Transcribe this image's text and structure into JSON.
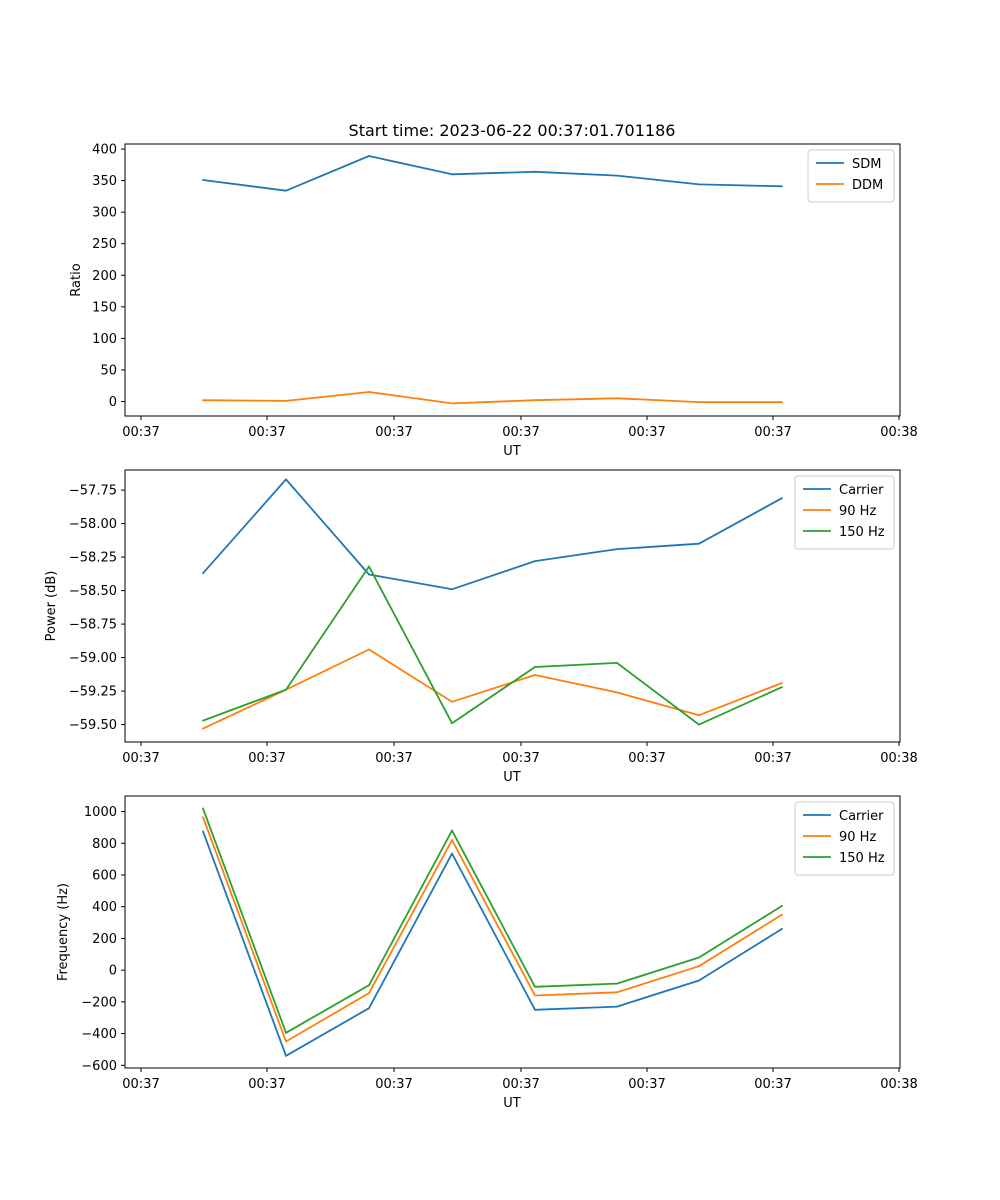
{
  "title": "Start time: 2023-06-22 00:37:01.701186",
  "colors": {
    "c0": "#1f77b4",
    "c1": "#ff7f0e",
    "c2": "#2ca02c",
    "axis": "#000000"
  },
  "chart_data": [
    {
      "type": "line",
      "xlabel": "UT",
      "ylabel": "Ratio",
      "x_tick_labels": [
        "00:37",
        "00:37",
        "00:37",
        "00:37",
        "00:37",
        "00:37",
        "00:38"
      ],
      "y_ticks": [
        0,
        50,
        100,
        150,
        200,
        250,
        300,
        350,
        400
      ],
      "ylim": [
        -23,
        408
      ],
      "legend_position": "top-right",
      "x": [
        1,
        2,
        3,
        4,
        5,
        6,
        7,
        8
      ],
      "series": [
        {
          "name": "SDM",
          "color": "#1f77b4",
          "values": [
            351,
            334,
            389,
            360,
            364,
            358,
            344,
            341
          ]
        },
        {
          "name": "DDM",
          "color": "#ff7f0e",
          "values": [
            2,
            1,
            15,
            -3,
            2,
            5,
            -1,
            -1
          ]
        }
      ]
    },
    {
      "type": "line",
      "xlabel": "UT",
      "ylabel": "Power (dB)",
      "x_tick_labels": [
        "00:37",
        "00:37",
        "00:37",
        "00:37",
        "00:37",
        "00:37",
        "00:38"
      ],
      "y_ticks": [
        -59.5,
        -59.25,
        -59.0,
        -58.75,
        -58.5,
        -58.25,
        -58.0,
        -57.75
      ],
      "y_tick_labels": [
        "−59.50",
        "−59.25",
        "−59.00",
        "−58.75",
        "−58.50",
        "−58.25",
        "−58.00",
        "−57.75"
      ],
      "ylim": [
        -59.63,
        -57.6
      ],
      "legend_position": "top-right",
      "x": [
        1,
        2,
        3,
        4,
        5,
        6,
        7,
        8
      ],
      "series": [
        {
          "name": "Carrier",
          "color": "#1f77b4",
          "values": [
            -58.37,
            -57.67,
            -58.38,
            -58.49,
            -58.28,
            -58.19,
            -58.15,
            -57.81
          ]
        },
        {
          "name": "90 Hz",
          "color": "#ff7f0e",
          "values": [
            -59.53,
            -59.24,
            -58.94,
            -59.33,
            -59.13,
            -59.26,
            -59.43,
            -59.19
          ]
        },
        {
          "name": "150 Hz",
          "color": "#2ca02c",
          "values": [
            -59.47,
            -59.24,
            -58.32,
            -59.49,
            -59.07,
            -59.04,
            -59.5,
            -59.22
          ]
        }
      ]
    },
    {
      "type": "line",
      "xlabel": "UT",
      "ylabel": "Frequency (Hz)",
      "x_tick_labels": [
        "00:37",
        "00:37",
        "00:37",
        "00:37",
        "00:37",
        "00:37",
        "00:38"
      ],
      "y_ticks": [
        -600,
        -400,
        -200,
        0,
        200,
        400,
        600,
        800,
        1000
      ],
      "y_tick_labels": [
        "−600",
        "−400",
        "−200",
        "0",
        "200",
        "400",
        "600",
        "800",
        "1000"
      ],
      "ylim": [
        -617,
        1098
      ],
      "legend_position": "top-right",
      "x": [
        1,
        2,
        3,
        4,
        5,
        6,
        7,
        8
      ],
      "series": [
        {
          "name": "Carrier",
          "color": "#1f77b4",
          "values": [
            875,
            -540,
            -240,
            735,
            -250,
            -230,
            -65,
            260
          ]
        },
        {
          "name": "90 Hz",
          "color": "#ff7f0e",
          "values": [
            965,
            -450,
            -145,
            820,
            -160,
            -140,
            25,
            350
          ]
        },
        {
          "name": "150 Hz",
          "color": "#2ca02c",
          "values": [
            1020,
            -395,
            -95,
            880,
            -105,
            -85,
            80,
            405
          ]
        }
      ]
    }
  ]
}
